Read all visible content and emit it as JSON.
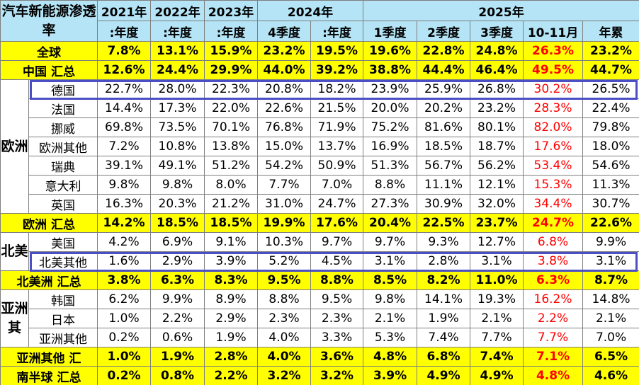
{
  "table": {
    "title": "汽车新能源渗透率",
    "years": [
      "2021年",
      "2022年",
      "2023年",
      "2024年",
      "2025年"
    ],
    "subheaders": [
      ":年度",
      ":年度",
      ":年度",
      "4季度",
      ":年度",
      "1季度",
      "2季度",
      "3季度",
      "10-11月",
      "年累"
    ],
    "rows": [
      {
        "label": "全球",
        "highlight": true,
        "values": [
          "7.8%",
          "13.1%",
          "15.9%",
          "23.2%",
          "19.5%",
          "19.6%",
          "22.8%",
          "24.8%",
          "26.3%",
          "23.2%"
        ]
      },
      {
        "label": "中国 汇总",
        "highlight": true,
        "values": [
          "12.6%",
          "24.4%",
          "29.9%",
          "44.0%",
          "39.2%",
          "38.8%",
          "44.4%",
          "46.4%",
          "49.5%",
          "44.7%"
        ]
      },
      {
        "group": "欧洲",
        "members": [
          {
            "label": "德国",
            "boxed": true,
            "values": [
              "22.7%",
              "28.0%",
              "22.3%",
              "20.8%",
              "18.2%",
              "23.9%",
              "25.9%",
              "26.8%",
              "30.2%",
              "26.5%"
            ]
          },
          {
            "label": "法国",
            "values": [
              "14.4%",
              "17.3%",
              "22.0%",
              "22.6%",
              "21.5%",
              "20.0%",
              "20.2%",
              "23.2%",
              "28.3%",
              "22.4%"
            ]
          },
          {
            "label": "挪威",
            "values": [
              "69.8%",
              "73.5%",
              "70.1%",
              "76.8%",
              "71.9%",
              "75.2%",
              "81.6%",
              "80.1%",
              "82.0%",
              "79.8%"
            ]
          },
          {
            "label": "欧洲其他",
            "values": [
              "7.2%",
              "10.8%",
              "13.8%",
              "15.0%",
              "13.7%",
              "16.9%",
              "18.5%",
              "18.7%",
              "17.6%",
              "18.0%"
            ]
          },
          {
            "label": "瑞典",
            "values": [
              "39.1%",
              "49.1%",
              "51.2%",
              "54.2%",
              "50.9%",
              "51.3%",
              "56.7%",
              "56.2%",
              "53.4%",
              "54.6%"
            ]
          },
          {
            "label": "意大利",
            "values": [
              "9.8%",
              "9.8%",
              "8.0%",
              "7.7%",
              "7.0%",
              "8.8%",
              "11.1%",
              "12.1%",
              "15.3%",
              "11.3%"
            ]
          },
          {
            "label": "英国",
            "values": [
              "16.3%",
              "20.3%",
              "21.2%",
              "31.0%",
              "24.7%",
              "27.3%",
              "30.9%",
              "32.0%",
              "34.4%",
              "30.7%"
            ]
          }
        ]
      },
      {
        "label": "欧洲 汇总",
        "highlight": true,
        "values": [
          "14.2%",
          "18.5%",
          "18.5%",
          "19.9%",
          "17.6%",
          "20.4%",
          "22.5%",
          "23.7%",
          "24.7%",
          "22.6%"
        ]
      },
      {
        "group": "北美",
        "members": [
          {
            "label": "美国",
            "values": [
              "4.2%",
              "6.9%",
              "9.1%",
              "10.3%",
              "9.7%",
              "9.7%",
              "9.3%",
              "12.7%",
              "6.8%",
              "9.9%"
            ]
          },
          {
            "label": "北美其他",
            "boxed": true,
            "values": [
              "1.6%",
              "2.9%",
              "3.9%",
              "5.2%",
              "4.5%",
              "3.1%",
              "2.8%",
              "3.1%",
              "3.8%",
              "3.1%"
            ]
          }
        ]
      },
      {
        "label": "北美洲 汇总",
        "highlight": true,
        "values": [
          "3.8%",
          "6.3%",
          "8.3%",
          "9.5%",
          "8.8%",
          "8.5%",
          "8.2%",
          "11.0%",
          "6.3%",
          "8.7%"
        ]
      },
      {
        "group": "亚洲其",
        "members": [
          {
            "label": "韩国",
            "values": [
              "6.2%",
              "9.9%",
              "8.9%",
              "8.8%",
              "9.5%",
              "9.8%",
              "14.1%",
              "19.3%",
              "16.2%",
              "14.8%"
            ]
          },
          {
            "label": "日本",
            "values": [
              "1.0%",
              "2.2%",
              "2.9%",
              "2.3%",
              "2.3%",
              "2.1%",
              "1.9%",
              "2.1%",
              "2.2%",
              "2.1%"
            ]
          },
          {
            "label": "亚洲其他",
            "values": [
              "0.2%",
              "0.6%",
              "1.9%",
              "4.0%",
              "3.3%",
              "5.3%",
              "7.4%",
              "7.7%",
              "7.7%",
              "7.0%"
            ]
          }
        ]
      },
      {
        "label": "亚洲其他 汇",
        "highlight": true,
        "values": [
          "1.0%",
          "1.9%",
          "2.8%",
          "4.0%",
          "3.6%",
          "4.8%",
          "6.8%",
          "7.4%",
          "7.1%",
          "6.5%"
        ]
      },
      {
        "label": "南半球 汇总",
        "highlight": true,
        "values": [
          "0.2%",
          "0.8%",
          "2.2%",
          "3.2%",
          "3.2%",
          "3.9%",
          "4.9%",
          "4.9%",
          "4.8%",
          "4.6%"
        ]
      }
    ]
  }
}
